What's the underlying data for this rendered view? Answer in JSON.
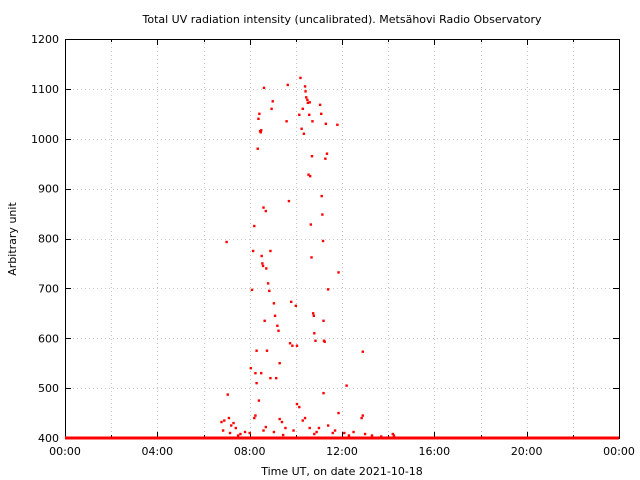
{
  "chart_data": {
    "type": "scatter",
    "title": "Total UV radiation intensity (uncalibrated). Metsähovi Radio Observatory",
    "xlabel": "Time UT, on date 2021-10-18",
    "ylabel": "Arbitrary unit",
    "xlim": [
      0,
      24
    ],
    "ylim": [
      400,
      1200
    ],
    "x_ticks": [
      {
        "value": 0,
        "label": "00:00"
      },
      {
        "value": 4,
        "label": "04:00"
      },
      {
        "value": 8,
        "label": "08:00"
      },
      {
        "value": 12,
        "label": "12:00"
      },
      {
        "value": 16,
        "label": "16:00"
      },
      {
        "value": 20,
        "label": "20:00"
      },
      {
        "value": 24,
        "label": "00:00"
      }
    ],
    "y_ticks": [
      400,
      500,
      600,
      700,
      800,
      900,
      1000,
      1100,
      1200
    ],
    "grid": true,
    "marker_color": "#ff0000",
    "baseline": {
      "value": 400,
      "x_start": 0,
      "x_end": 24
    },
    "points": [
      {
        "x": 6.78,
        "y": 432
      },
      {
        "x": 6.9,
        "y": 435
      },
      {
        "x": 7.0,
        "y": 793
      },
      {
        "x": 7.05,
        "y": 487
      },
      {
        "x": 7.1,
        "y": 440
      },
      {
        "x": 7.2,
        "y": 425
      },
      {
        "x": 7.3,
        "y": 430
      },
      {
        "x": 6.85,
        "y": 415
      },
      {
        "x": 7.15,
        "y": 410
      },
      {
        "x": 7.4,
        "y": 420
      },
      {
        "x": 7.5,
        "y": 405
      },
      {
        "x": 8.05,
        "y": 540
      },
      {
        "x": 8.1,
        "y": 697
      },
      {
        "x": 8.15,
        "y": 775
      },
      {
        "x": 8.2,
        "y": 825
      },
      {
        "x": 8.25,
        "y": 530
      },
      {
        "x": 8.3,
        "y": 575
      },
      {
        "x": 8.35,
        "y": 980
      },
      {
        "x": 8.38,
        "y": 1040
      },
      {
        "x": 8.42,
        "y": 1050
      },
      {
        "x": 8.45,
        "y": 1015
      },
      {
        "x": 8.48,
        "y": 1013
      },
      {
        "x": 8.5,
        "y": 1017
      },
      {
        "x": 8.52,
        "y": 765
      },
      {
        "x": 8.55,
        "y": 750
      },
      {
        "x": 8.58,
        "y": 745
      },
      {
        "x": 8.6,
        "y": 862
      },
      {
        "x": 8.62,
        "y": 1102
      },
      {
        "x": 8.65,
        "y": 635
      },
      {
        "x": 8.7,
        "y": 855
      },
      {
        "x": 8.72,
        "y": 740
      },
      {
        "x": 8.75,
        "y": 575
      },
      {
        "x": 8.8,
        "y": 710
      },
      {
        "x": 8.85,
        "y": 695
      },
      {
        "x": 8.9,
        "y": 775
      },
      {
        "x": 8.95,
        "y": 1060
      },
      {
        "x": 9.0,
        "y": 1075
      },
      {
        "x": 9.05,
        "y": 670
      },
      {
        "x": 9.1,
        "y": 645
      },
      {
        "x": 9.15,
        "y": 520
      },
      {
        "x": 9.2,
        "y": 625
      },
      {
        "x": 9.25,
        "y": 615
      },
      {
        "x": 9.3,
        "y": 550
      },
      {
        "x": 8.3,
        "y": 510
      },
      {
        "x": 8.4,
        "y": 475
      },
      {
        "x": 8.5,
        "y": 530
      },
      {
        "x": 8.9,
        "y": 520
      },
      {
        "x": 9.6,
        "y": 1035
      },
      {
        "x": 9.65,
        "y": 1108
      },
      {
        "x": 9.7,
        "y": 875
      },
      {
        "x": 9.75,
        "y": 590
      },
      {
        "x": 9.8,
        "y": 673
      },
      {
        "x": 9.85,
        "y": 585
      },
      {
        "x": 10.0,
        "y": 665
      },
      {
        "x": 10.05,
        "y": 585
      },
      {
        "x": 10.15,
        "y": 1048
      },
      {
        "x": 10.2,
        "y": 1122
      },
      {
        "x": 10.25,
        "y": 1020
      },
      {
        "x": 10.3,
        "y": 1060
      },
      {
        "x": 10.35,
        "y": 1010
      },
      {
        "x": 10.4,
        "y": 1105
      },
      {
        "x": 10.42,
        "y": 1095
      },
      {
        "x": 10.45,
        "y": 1083
      },
      {
        "x": 10.5,
        "y": 1078
      },
      {
        "x": 10.52,
        "y": 1072
      },
      {
        "x": 10.55,
        "y": 928
      },
      {
        "x": 10.58,
        "y": 1048
      },
      {
        "x": 10.6,
        "y": 1073
      },
      {
        "x": 10.62,
        "y": 925
      },
      {
        "x": 10.65,
        "y": 828
      },
      {
        "x": 10.68,
        "y": 762
      },
      {
        "x": 10.7,
        "y": 965
      },
      {
        "x": 10.72,
        "y": 1035
      },
      {
        "x": 10.75,
        "y": 650
      },
      {
        "x": 10.78,
        "y": 645
      },
      {
        "x": 10.8,
        "y": 610
      },
      {
        "x": 10.85,
        "y": 595
      },
      {
        "x": 11.05,
        "y": 1068
      },
      {
        "x": 11.1,
        "y": 1050
      },
      {
        "x": 11.12,
        "y": 885
      },
      {
        "x": 11.15,
        "y": 848
      },
      {
        "x": 11.18,
        "y": 795
      },
      {
        "x": 11.2,
        "y": 635
      },
      {
        "x": 11.22,
        "y": 595
      },
      {
        "x": 11.25,
        "y": 593
      },
      {
        "x": 11.28,
        "y": 960
      },
      {
        "x": 11.3,
        "y": 1030
      },
      {
        "x": 11.35,
        "y": 970
      },
      {
        "x": 11.4,
        "y": 698
      },
      {
        "x": 11.8,
        "y": 1028
      },
      {
        "x": 11.85,
        "y": 732
      },
      {
        "x": 11.2,
        "y": 490
      },
      {
        "x": 12.2,
        "y": 505
      },
      {
        "x": 12.9,
        "y": 573
      },
      {
        "x": 12.85,
        "y": 440
      },
      {
        "x": 12.9,
        "y": 445
      },
      {
        "x": 11.85,
        "y": 450
      },
      {
        "x": 10.05,
        "y": 468
      },
      {
        "x": 10.15,
        "y": 462
      },
      {
        "x": 10.4,
        "y": 440
      },
      {
        "x": 9.4,
        "y": 432
      },
      {
        "x": 9.55,
        "y": 420
      },
      {
        "x": 10.3,
        "y": 435
      },
      {
        "x": 11.0,
        "y": 420
      },
      {
        "x": 11.4,
        "y": 425
      },
      {
        "x": 8.2,
        "y": 440
      },
      {
        "x": 8.25,
        "y": 445
      },
      {
        "x": 8.7,
        "y": 422
      },
      {
        "x": 9.3,
        "y": 438
      },
      {
        "x": 11.7,
        "y": 415
      },
      {
        "x": 12.1,
        "y": 410
      },
      {
        "x": 12.5,
        "y": 412
      },
      {
        "x": 13.0,
        "y": 408
      },
      {
        "x": 8.0,
        "y": 410
      },
      {
        "x": 8.6,
        "y": 415
      },
      {
        "x": 9.05,
        "y": 412
      },
      {
        "x": 9.9,
        "y": 415
      },
      {
        "x": 10.6,
        "y": 420
      },
      {
        "x": 10.9,
        "y": 412
      },
      {
        "x": 11.6,
        "y": 410
      },
      {
        "x": 12.3,
        "y": 405
      },
      {
        "x": 13.3,
        "y": 405
      },
      {
        "x": 13.7,
        "y": 403
      },
      {
        "x": 14.2,
        "y": 408
      },
      {
        "x": 14.25,
        "y": 405
      },
      {
        "x": 7.6,
        "y": 408
      },
      {
        "x": 7.8,
        "y": 412
      },
      {
        "x": 9.45,
        "y": 406
      },
      {
        "x": 10.8,
        "y": 408
      }
    ]
  }
}
